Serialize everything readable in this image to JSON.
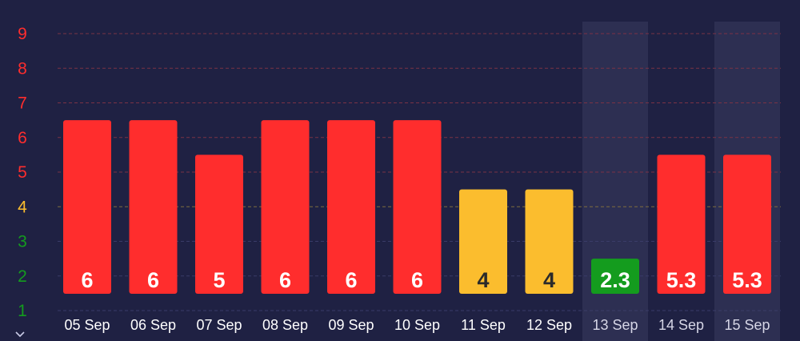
{
  "chart_data": {
    "type": "bar",
    "title": "",
    "xlabel": "",
    "ylabel": "",
    "categories": [
      "05 Sep",
      "06 Sep",
      "07 Sep",
      "08 Sep",
      "09 Sep",
      "10 Sep",
      "11 Sep",
      "12 Sep",
      "13 Sep",
      "14 Sep",
      "15 Sep"
    ],
    "values": [
      6,
      6,
      5,
      6,
      6,
      6,
      4,
      4,
      2.3,
      5.3,
      5.3
    ],
    "value_labels": [
      "6",
      "6",
      "5",
      "6",
      "6",
      "6",
      "4",
      "4",
      "2.3",
      "5.3",
      "5.3"
    ],
    "bar_tops": [
      6.5,
      6.5,
      5.5,
      6.5,
      6.5,
      6.5,
      4.5,
      4.5,
      2.5,
      5.5,
      5.5
    ],
    "bar_colors": [
      "#ff2d2d",
      "#ff2d2d",
      "#ff2d2d",
      "#ff2d2d",
      "#ff2d2d",
      "#ff2d2d",
      "#fbbd2e",
      "#fbbd2e",
      "#149c1e",
      "#ff2d2d",
      "#ff2d2d"
    ],
    "label_colors": [
      "#ffffff",
      "#ffffff",
      "#ffffff",
      "#ffffff",
      "#ffffff",
      "#ffffff",
      "#2a2a2a",
      "#2a2a2a",
      "#ffffff",
      "#ffffff",
      "#ffffff"
    ],
    "highlighted": [
      false,
      false,
      false,
      false,
      false,
      false,
      false,
      false,
      true,
      true,
      true
    ],
    "y_ticks": [
      {
        "value": 9,
        "label": "9",
        "color": "#ff2d2d"
      },
      {
        "value": 8,
        "label": "8",
        "color": "#ff2d2d"
      },
      {
        "value": 7,
        "label": "7",
        "color": "#ff2d2d"
      },
      {
        "value": 6,
        "label": "6",
        "color": "#ff2d2d"
      },
      {
        "value": 5,
        "label": "5",
        "color": "#ff2d2d"
      },
      {
        "value": 4,
        "label": "4",
        "color": "#fbbd2e"
      },
      {
        "value": 3,
        "label": "3",
        "color": "#149c1e"
      },
      {
        "value": 2,
        "label": "2",
        "color": "#149c1e"
      },
      {
        "value": 1,
        "label": "1",
        "color": "#149c1e"
      }
    ],
    "ylim": [
      1,
      9
    ],
    "grid": true,
    "colors": {
      "background": "#1f2143",
      "highlight_band": "#2d2f52",
      "grid_red": "#7a3245",
      "grid_yellow": "#7e6e3e",
      "grid_neutral": "#3a3c68",
      "x_label": "#ffffff",
      "x_label_highlighted": "#d6d6e6"
    }
  },
  "scroll_hint_icon": "chevron-down-icon"
}
